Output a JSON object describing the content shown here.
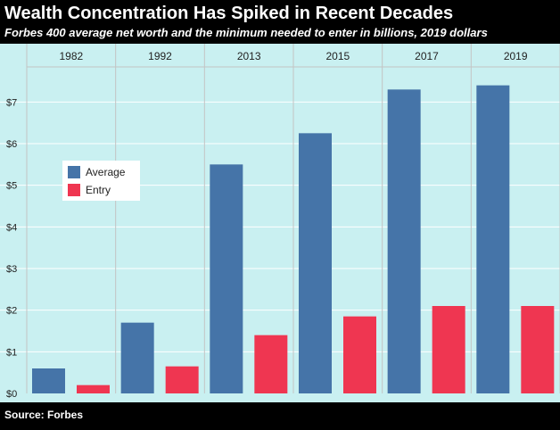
{
  "header": {
    "title": "Wealth Concentration Has Spiked in Recent Decades",
    "subtitle": "Forbes 400 average net worth and the minimum needed to enter in billions, 2019 dollars"
  },
  "footer": {
    "source": "Source: Forbes"
  },
  "colors": {
    "background": "#c9f0f1",
    "average": "#4574a8",
    "entry": "#ef3651",
    "grid": "#ffffff",
    "divider": "#c4c4c4"
  },
  "chart_data": {
    "type": "bar",
    "categories": [
      "1982",
      "1992",
      "2013",
      "2015",
      "2017",
      "2019"
    ],
    "series": [
      {
        "name": "Average",
        "color": "#4574a8",
        "values": [
          0.6,
          1.7,
          5.5,
          6.25,
          7.3,
          7.4
        ]
      },
      {
        "name": "Entry",
        "color": "#ef3651",
        "values": [
          0.2,
          0.65,
          1.4,
          1.85,
          2.1,
          2.1
        ]
      }
    ],
    "y_ticks": [
      "$0",
      "$1",
      "$2",
      "$3",
      "$4",
      "$5",
      "$6",
      "$7"
    ],
    "ylim": [
      0,
      8.1
    ],
    "legend_position": "middle-left",
    "category_axis_position": "top",
    "grid": true
  }
}
